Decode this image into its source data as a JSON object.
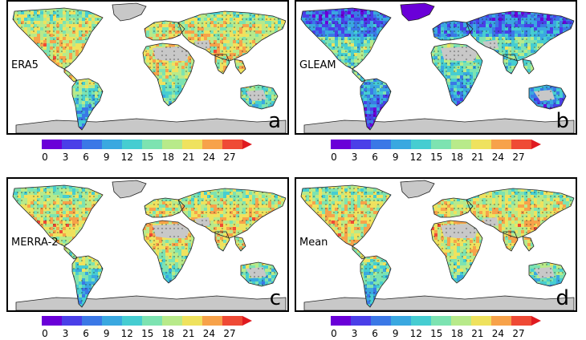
{
  "colorbar": {
    "ticks": [
      "0",
      "3",
      "6",
      "9",
      "12",
      "15",
      "18",
      "21",
      "24",
      "27"
    ],
    "colors": [
      "#6a00d8",
      "#4a3fe8",
      "#3b78e6",
      "#3aa8e0",
      "#46cdd1",
      "#7de3b1",
      "#b8ea8a",
      "#efe25e",
      "#f7a24a",
      "#ef4a35",
      "#e01a20"
    ]
  },
  "colors": {
    "land_missing": "#c8c8c8",
    "coast": "#222222",
    "stipple": "#1a1a1a"
  },
  "chart_data": [
    {
      "type": "heatmap",
      "panel": "a",
      "label": "ERA5",
      "colorbar_ticks": [
        0,
        3,
        6,
        9,
        12,
        15,
        18,
        21,
        24,
        27
      ],
      "colorbar_extend": "max",
      "dominant_range": [
        9,
        27
      ]
    },
    {
      "type": "heatmap",
      "panel": "b",
      "label": "GLEAM",
      "colorbar_ticks": [
        0,
        3,
        6,
        9,
        12,
        15,
        18,
        21,
        24,
        27
      ],
      "colorbar_extend": "max",
      "dominant_range": [
        3,
        21
      ]
    },
    {
      "type": "heatmap",
      "panel": "c",
      "label": "MERRA-2",
      "colorbar_ticks": [
        0,
        3,
        6,
        9,
        12,
        15,
        18,
        21,
        24,
        27
      ],
      "colorbar_extend": "max",
      "dominant_range": [
        9,
        27
      ]
    },
    {
      "type": "heatmap",
      "panel": "d",
      "label": "Mean",
      "colorbar_ticks": [
        0,
        3,
        6,
        9,
        12,
        15,
        18,
        21,
        24,
        27
      ],
      "colorbar_extend": "max",
      "dominant_range": [
        9,
        27
      ]
    }
  ]
}
